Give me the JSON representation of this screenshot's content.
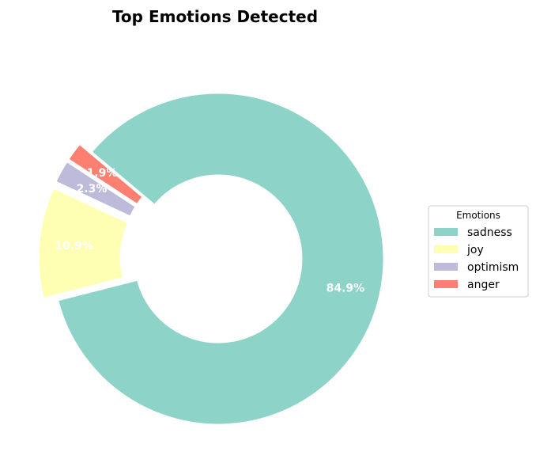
{
  "chart_data": {
    "type": "pie",
    "variant": "donut",
    "title": "Top Emotions Detected",
    "legend": {
      "title": "Emotions",
      "placement": "center-right"
    },
    "categories": [
      "sadness",
      "joy",
      "optimism",
      "anger"
    ],
    "values": [
      84.9,
      10.9,
      2.3,
      1.9
    ],
    "labels": [
      "84.9%",
      "10.9%",
      "2.3%",
      "1.9%"
    ],
    "colors": [
      "#8dd3c7",
      "#ffffb3",
      "#bebada",
      "#fb8072"
    ],
    "exploded": [
      false,
      true,
      true,
      true
    ]
  }
}
